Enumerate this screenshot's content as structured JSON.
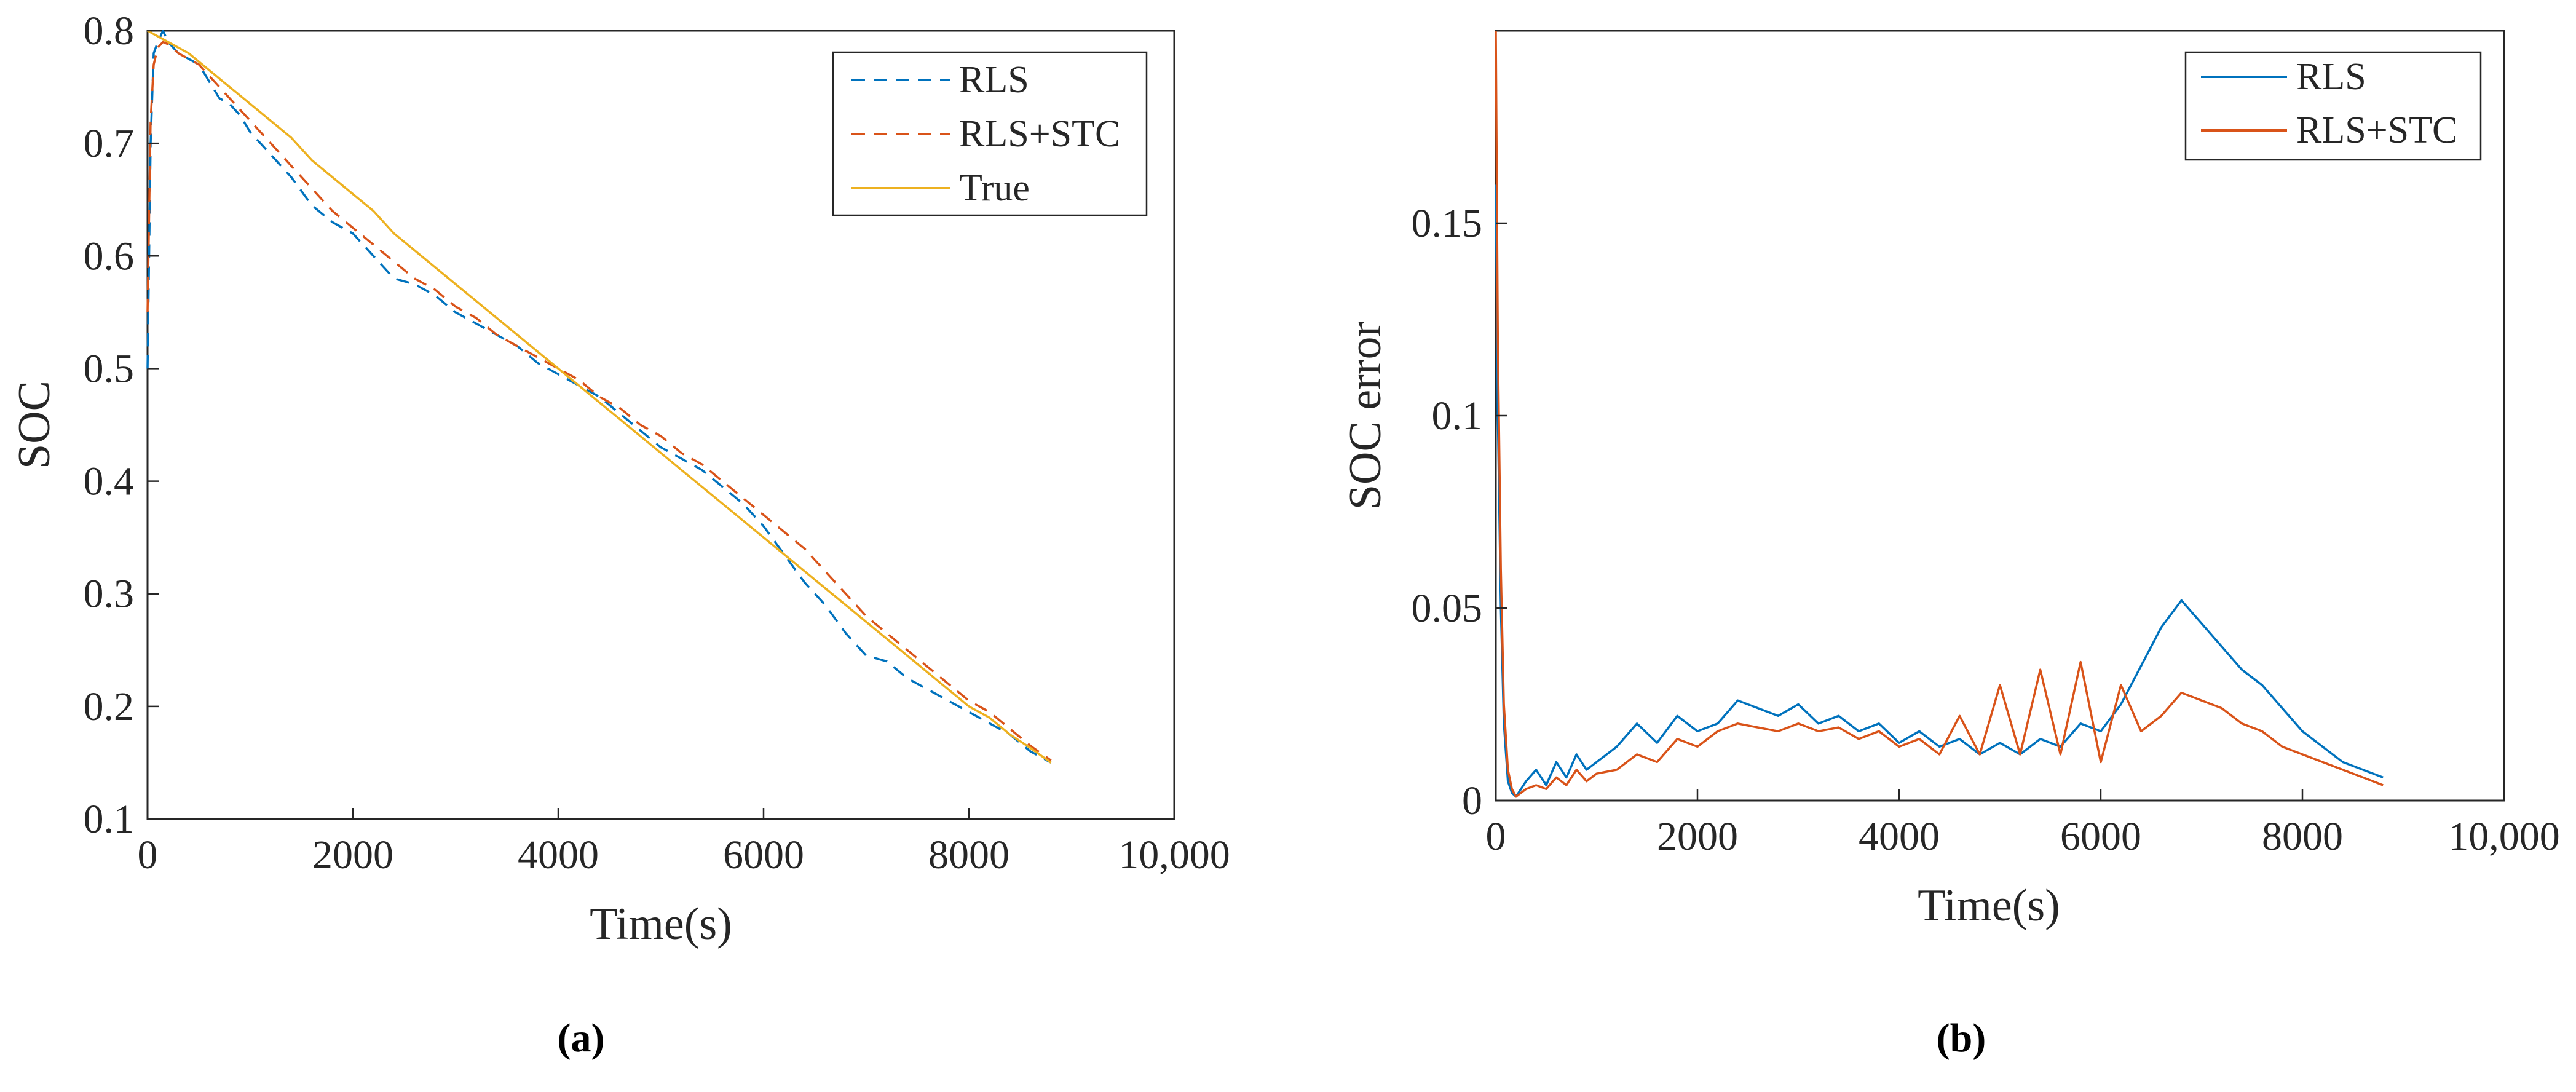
{
  "chart_data": [
    {
      "type": "line",
      "caption": "(a)",
      "xlabel": "Time(s)",
      "ylabel": "SOC",
      "xlim": [
        0,
        10000
      ],
      "ylim": [
        0.1,
        0.8
      ],
      "xticks": [
        0,
        2000,
        4000,
        6000,
        8000,
        10000
      ],
      "xtick_labels": [
        "0",
        "2000",
        "4000",
        "6000",
        "8000",
        "10,000"
      ],
      "yticks": [
        0.1,
        0.2,
        0.3,
        0.4,
        0.5,
        0.6,
        0.7,
        0.8
      ],
      "ytick_labels": [
        "0.1",
        "0.2",
        "0.3",
        "0.4",
        "0.5",
        "0.6",
        "0.7",
        "0.8"
      ],
      "legend_position": "top-right",
      "series": [
        {
          "name": "RLS",
          "color": "#0072BD",
          "style": "dashed",
          "x": [
            0,
            30,
            60,
            100,
            150,
            200,
            300,
            400,
            500,
            600,
            700,
            800,
            900,
            1000,
            1200,
            1400,
            1600,
            1800,
            2000,
            2200,
            2400,
            2600,
            2800,
            3000,
            3200,
            3400,
            3600,
            3800,
            4000,
            4200,
            4400,
            4600,
            4800,
            5000,
            5200,
            5400,
            5600,
            5800,
            6000,
            6200,
            6400,
            6600,
            6800,
            7000,
            7200,
            7400,
            7600,
            7800,
            8000,
            8200,
            8400,
            8600,
            8800
          ],
          "values": [
            0.5,
            0.7,
            0.78,
            0.79,
            0.8,
            0.79,
            0.78,
            0.775,
            0.77,
            0.755,
            0.74,
            0.735,
            0.725,
            0.71,
            0.69,
            0.67,
            0.645,
            0.63,
            0.62,
            0.6,
            0.58,
            0.575,
            0.565,
            0.55,
            0.54,
            0.53,
            0.52,
            0.505,
            0.495,
            0.485,
            0.475,
            0.46,
            0.445,
            0.43,
            0.42,
            0.41,
            0.395,
            0.38,
            0.36,
            0.335,
            0.31,
            0.29,
            0.265,
            0.245,
            0.24,
            0.225,
            0.215,
            0.205,
            0.195,
            0.185,
            0.175,
            0.16,
            0.15
          ]
        },
        {
          "name": "RLS+STC",
          "color": "#D95319",
          "style": "dashed",
          "x": [
            0,
            30,
            60,
            100,
            150,
            200,
            300,
            400,
            500,
            600,
            700,
            800,
            900,
            1000,
            1200,
            1400,
            1600,
            1800,
            2000,
            2200,
            2400,
            2600,
            2800,
            3000,
            3200,
            3400,
            3600,
            3800,
            4000,
            4200,
            4400,
            4600,
            4800,
            5000,
            5200,
            5400,
            5600,
            5800,
            6000,
            6200,
            6400,
            6600,
            6800,
            7000,
            7200,
            7400,
            7600,
            7800,
            8000,
            8200,
            8400,
            8600,
            8800
          ],
          "values": [
            0.55,
            0.72,
            0.77,
            0.785,
            0.79,
            0.788,
            0.78,
            0.775,
            0.77,
            0.76,
            0.75,
            0.74,
            0.73,
            0.72,
            0.7,
            0.68,
            0.66,
            0.64,
            0.625,
            0.61,
            0.595,
            0.58,
            0.57,
            0.555,
            0.545,
            0.53,
            0.52,
            0.51,
            0.5,
            0.49,
            0.475,
            0.465,
            0.45,
            0.44,
            0.425,
            0.415,
            0.4,
            0.385,
            0.37,
            0.355,
            0.34,
            0.32,
            0.3,
            0.28,
            0.265,
            0.25,
            0.235,
            0.22,
            0.205,
            0.195,
            0.18,
            0.165,
            0.152
          ]
        },
        {
          "name": "True",
          "color": "#EDB120",
          "style": "solid",
          "x": [
            0,
            200,
            400,
            600,
            800,
            1000,
            1200,
            1400,
            1600,
            1800,
            2000,
            2200,
            2400,
            2600,
            2800,
            3000,
            3200,
            3400,
            3600,
            3800,
            4000,
            4200,
            4400,
            4600,
            4800,
            5000,
            5200,
            5400,
            5600,
            5800,
            6000,
            6200,
            6400,
            6600,
            6800,
            7000,
            7200,
            7400,
            7600,
            7800,
            8000,
            8200,
            8400,
            8600,
            8800
          ],
          "values": [
            0.8,
            0.79,
            0.78,
            0.765,
            0.75,
            0.735,
            0.72,
            0.705,
            0.685,
            0.67,
            0.655,
            0.64,
            0.62,
            0.605,
            0.59,
            0.575,
            0.56,
            0.545,
            0.53,
            0.515,
            0.5,
            0.485,
            0.47,
            0.455,
            0.44,
            0.425,
            0.41,
            0.395,
            0.38,
            0.365,
            0.35,
            0.335,
            0.32,
            0.305,
            0.29,
            0.275,
            0.26,
            0.245,
            0.23,
            0.215,
            0.2,
            0.19,
            0.175,
            0.163,
            0.15
          ]
        }
      ]
    },
    {
      "type": "line",
      "caption": "(b)",
      "xlabel": "Time(s)",
      "ylabel": "SOC error",
      "xlim": [
        0,
        10000
      ],
      "ylim": [
        0,
        0.2
      ],
      "xticks": [
        0,
        2000,
        4000,
        6000,
        8000,
        10000
      ],
      "xtick_labels": [
        "0",
        "2000",
        "4000",
        "6000",
        "8000",
        "10,000"
      ],
      "yticks": [
        0,
        0.05,
        0.1,
        0.15
      ],
      "ytick_labels": [
        "0",
        "0.05",
        "0.1",
        "0.15"
      ],
      "legend_position": "top-right",
      "series": [
        {
          "name": "RLS",
          "color": "#0072BD",
          "style": "solid",
          "x": [
            0,
            20,
            50,
            80,
            120,
            160,
            200,
            250,
            300,
            400,
            500,
            600,
            700,
            800,
            900,
            1000,
            1200,
            1400,
            1600,
            1800,
            2000,
            2200,
            2400,
            2600,
            2800,
            3000,
            3200,
            3400,
            3600,
            3800,
            4000,
            4200,
            4400,
            4600,
            4800,
            5000,
            5200,
            5400,
            5600,
            5800,
            6000,
            6200,
            6400,
            6600,
            6800,
            7000,
            7200,
            7400,
            7600,
            7800,
            8000,
            8200,
            8400,
            8600,
            8800
          ],
          "values": [
            0.16,
            0.1,
            0.05,
            0.02,
            0.005,
            0.002,
            0.001,
            0.003,
            0.005,
            0.008,
            0.004,
            0.01,
            0.006,
            0.012,
            0.008,
            0.01,
            0.014,
            0.02,
            0.015,
            0.022,
            0.018,
            0.02,
            0.026,
            0.024,
            0.022,
            0.025,
            0.02,
            0.022,
            0.018,
            0.02,
            0.015,
            0.018,
            0.014,
            0.016,
            0.012,
            0.015,
            0.012,
            0.016,
            0.014,
            0.02,
            0.018,
            0.025,
            0.035,
            0.045,
            0.052,
            0.046,
            0.04,
            0.034,
            0.03,
            0.024,
            0.018,
            0.014,
            0.01,
            0.008,
            0.006
          ]
        },
        {
          "name": "RLS+STC",
          "color": "#D95319",
          "style": "solid",
          "x": [
            0,
            20,
            50,
            80,
            120,
            160,
            200,
            250,
            300,
            400,
            500,
            600,
            700,
            800,
            900,
            1000,
            1200,
            1400,
            1600,
            1800,
            2000,
            2200,
            2400,
            2600,
            2800,
            3000,
            3200,
            3400,
            3600,
            3800,
            4000,
            4200,
            4400,
            4600,
            4800,
            5000,
            5200,
            5400,
            5600,
            5800,
            6000,
            6200,
            6400,
            6600,
            6800,
            7000,
            7200,
            7400,
            7600,
            7800,
            8000,
            8200,
            8400,
            8600,
            8800
          ],
          "values": [
            0.2,
            0.12,
            0.06,
            0.025,
            0.008,
            0.003,
            0.001,
            0.002,
            0.003,
            0.004,
            0.003,
            0.006,
            0.004,
            0.008,
            0.005,
            0.007,
            0.008,
            0.012,
            0.01,
            0.016,
            0.014,
            0.018,
            0.02,
            0.019,
            0.018,
            0.02,
            0.018,
            0.019,
            0.016,
            0.018,
            0.014,
            0.016,
            0.012,
            0.022,
            0.012,
            0.03,
            0.012,
            0.034,
            0.012,
            0.036,
            0.01,
            0.03,
            0.018,
            0.022,
            0.028,
            0.026,
            0.024,
            0.02,
            0.018,
            0.014,
            0.012,
            0.01,
            0.008,
            0.006,
            0.004
          ]
        }
      ]
    }
  ]
}
